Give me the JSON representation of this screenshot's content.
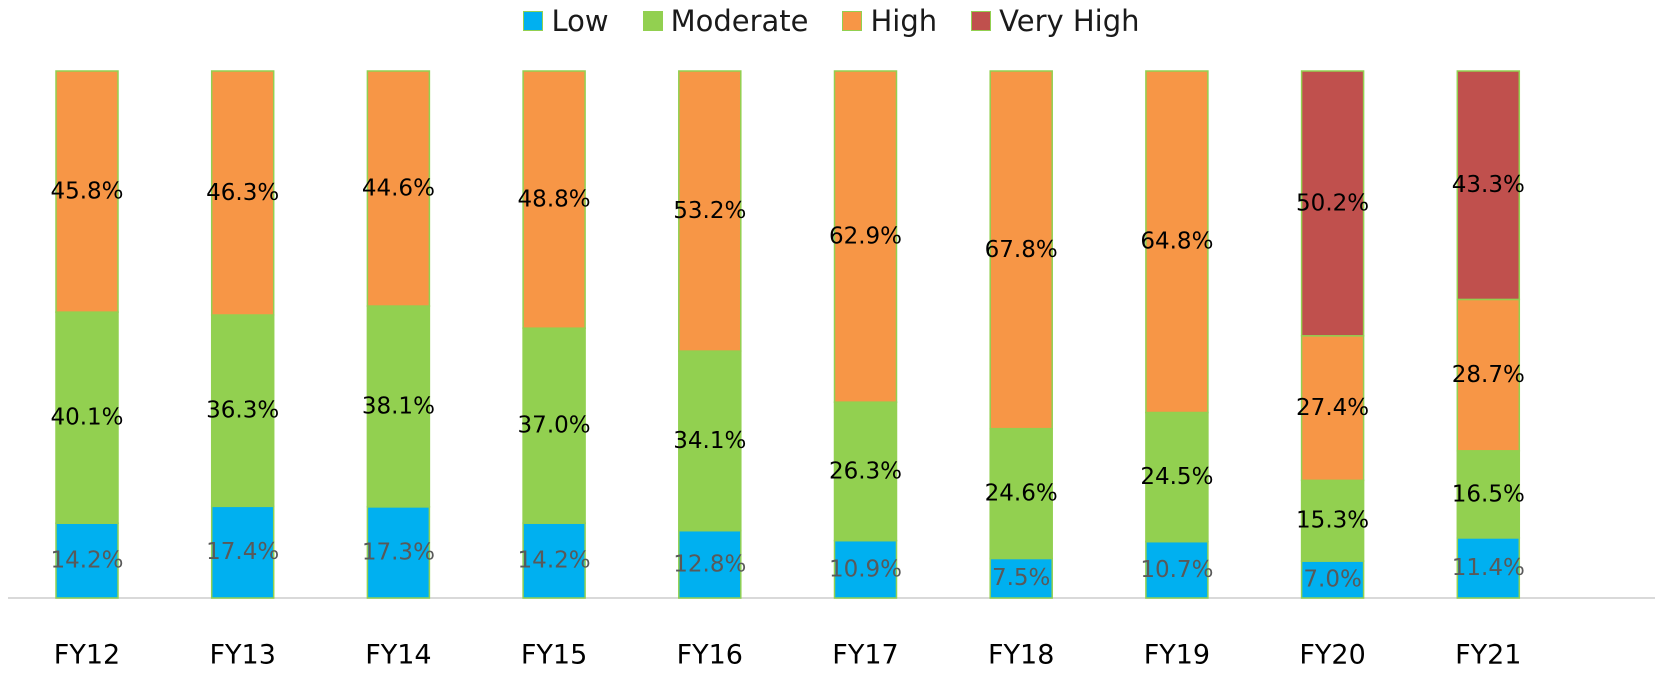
{
  "chart_data": {
    "type": "bar",
    "stacked": true,
    "percent_stacked": true,
    "categories": [
      "FY12",
      "FY13",
      "FY14",
      "FY15",
      "FY16",
      "FY17",
      "FY18",
      "FY19",
      "FY20",
      "FY21"
    ],
    "series": [
      {
        "name": "Low",
        "color": "#00b0f0",
        "values": [
          14.2,
          17.4,
          17.3,
          14.2,
          12.8,
          10.9,
          7.5,
          10.7,
          7.0,
          11.4
        ],
        "labels": [
          "14.2%",
          "17.4%",
          "17.3%",
          "14.2%",
          "12.8%",
          "10.9%",
          "7.5%",
          "10.7%",
          "7.0%",
          "11.4%"
        ]
      },
      {
        "name": "Moderate",
        "color": "#92d050",
        "values": [
          40.1,
          36.3,
          38.1,
          37.0,
          34.1,
          26.3,
          24.6,
          24.5,
          15.3,
          16.5
        ],
        "labels": [
          "40.1%",
          "36.3%",
          "38.1%",
          "37.0%",
          "34.1%",
          "26.3%",
          "24.6%",
          "24.5%",
          "15.3%",
          "16.5%"
        ]
      },
      {
        "name": "High",
        "color": "#f79646",
        "values": [
          45.8,
          46.3,
          44.6,
          48.8,
          53.2,
          62.9,
          67.8,
          64.8,
          27.4,
          28.7
        ],
        "labels": [
          "45.8%",
          "46.3%",
          "44.6%",
          "48.8%",
          "53.2%",
          "62.9%",
          "67.8%",
          "64.8%",
          "27.4%",
          "28.7%"
        ]
      },
      {
        "name": "Very High",
        "color": "#c0504d",
        "values": [
          0,
          0,
          0,
          0,
          0,
          0,
          0,
          0,
          50.2,
          43.3
        ],
        "labels": [
          "",
          "",
          "",
          "",
          "",
          "",
          "",
          "",
          "50.2%",
          "43.3%"
        ]
      }
    ],
    "title": "",
    "xlabel": "",
    "ylabel": "",
    "ylim": [
      0,
      100
    ],
    "grid": false,
    "legend_position": "top-center",
    "axis_color": "#d9d9d9",
    "bar_border_color": "#92d050",
    "low_label_color": "#595959",
    "label_color": "#000000"
  }
}
